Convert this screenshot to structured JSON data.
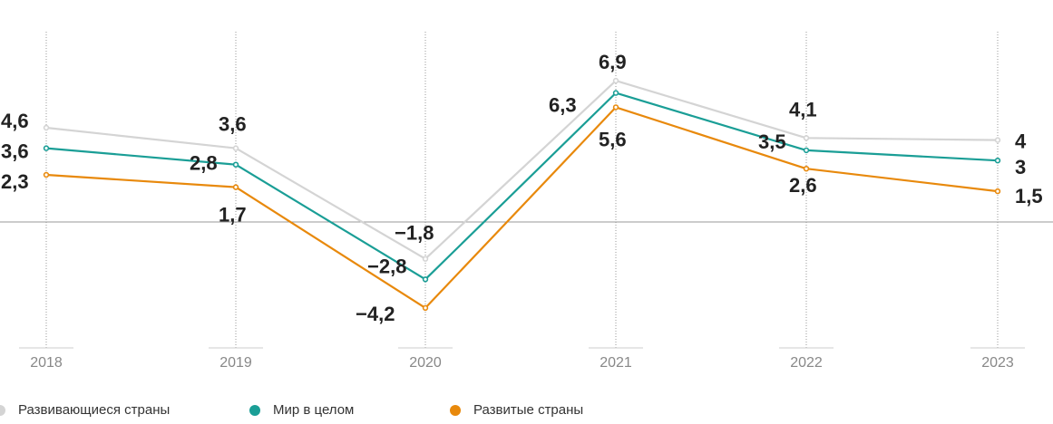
{
  "chart_data": {
    "type": "line",
    "x": [
      "2018",
      "2019",
      "2020",
      "2021",
      "2022",
      "2023"
    ],
    "series": [
      {
        "name": "Развивающиеся страны",
        "color": "#d4d4d4",
        "values": [
          4.6,
          3.6,
          -1.8,
          6.9,
          4.1,
          4
        ],
        "labels": [
          "4,6",
          "3,6",
          "−1,8",
          "6,9",
          "4,1",
          "4"
        ]
      },
      {
        "name": "Мир в целом",
        "color": "#1a9e96",
        "values": [
          3.6,
          2.8,
          -2.8,
          6.3,
          3.5,
          3
        ],
        "labels": [
          "3,6",
          "2,8",
          "−2,8",
          "6,3",
          "3,5",
          "3"
        ]
      },
      {
        "name": "Развитые страны",
        "color": "#e8890c",
        "values": [
          2.3,
          1.7,
          -4.2,
          5.6,
          2.6,
          1.5
        ],
        "labels": [
          "2,3",
          "1,7",
          "−4,2",
          "5,6",
          "2,6",
          "1,5"
        ]
      }
    ],
    "zero_line": true,
    "vertical_grid": "dotted",
    "legend_position": "bottom-left"
  }
}
